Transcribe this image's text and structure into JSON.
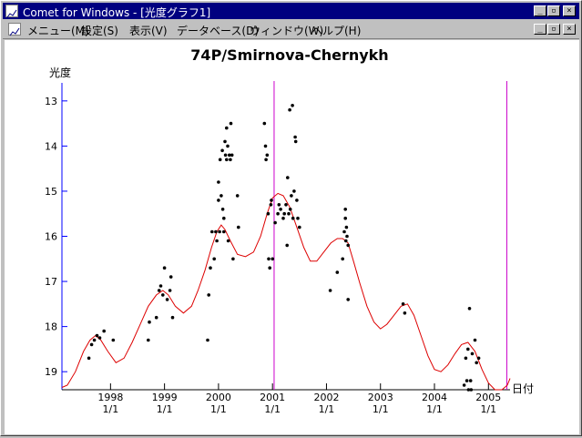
{
  "window": {
    "title": "Comet for Windows - [光度グラフ1]",
    "controls": {
      "minimize": "_",
      "restore": "▫",
      "close": "×"
    }
  },
  "menu": {
    "items": [
      "メニュー(M)",
      "設定(S)",
      "表示(V)",
      "データベース(D)",
      "ウィンドウ(W)",
      "ヘルプ(H)"
    ]
  },
  "chart_data": {
    "type": "scatter",
    "title": "74P/Smirnova-Chernykh",
    "ylabel": "光度",
    "xlabel": "日付",
    "y_inverted": true,
    "ylim": [
      19.4,
      12.6
    ],
    "xlim": [
      1997.1,
      2005.4
    ],
    "y_ticks": [
      13,
      14,
      15,
      16,
      17,
      18,
      19
    ],
    "x_ticks": [
      {
        "value": 1998.0,
        "year": "1998",
        "day": "1/1"
      },
      {
        "value": 1999.0,
        "year": "1999",
        "day": "1/1"
      },
      {
        "value": 2000.0,
        "year": "2000",
        "day": "1/1"
      },
      {
        "value": 2001.0,
        "year": "2001",
        "day": "1/1"
      },
      {
        "value": 2002.0,
        "year": "2002",
        "day": "1/1"
      },
      {
        "value": 2003.0,
        "year": "2003",
        "day": "1/1"
      },
      {
        "value": 2004.0,
        "year": "2004",
        "day": "1/1"
      },
      {
        "value": 2005.0,
        "year": "2005",
        "day": "1/1"
      }
    ],
    "vertical_markers": [
      2001.03,
      2005.34
    ],
    "colors": {
      "points": "#000000",
      "curve": "#dd0000",
      "markers": "#cc00cc",
      "axis": "#0000ff",
      "tick_labels": "#000000"
    },
    "observations": [
      [
        1997.6,
        18.7
      ],
      [
        1997.65,
        18.4
      ],
      [
        1997.7,
        18.3
      ],
      [
        1997.75,
        18.2
      ],
      [
        1997.8,
        18.25
      ],
      [
        1997.88,
        18.1
      ],
      [
        1998.05,
        18.3
      ],
      [
        1998.7,
        18.3
      ],
      [
        1998.72,
        17.9
      ],
      [
        1998.85,
        17.8
      ],
      [
        1998.9,
        17.2
      ],
      [
        1998.93,
        17.1
      ],
      [
        1998.97,
        17.3
      ],
      [
        1999.0,
        16.7
      ],
      [
        1999.05,
        17.4
      ],
      [
        1999.1,
        17.2
      ],
      [
        1999.12,
        16.9
      ],
      [
        1999.15,
        17.8
      ],
      [
        1999.8,
        18.3
      ],
      [
        1999.82,
        17.3
      ],
      [
        1999.85,
        16.7
      ],
      [
        1999.88,
        15.9
      ],
      [
        1999.92,
        16.5
      ],
      [
        1999.95,
        15.9
      ],
      [
        1999.97,
        16.1
      ],
      [
        2000.0,
        14.8
      ],
      [
        2000.0,
        15.2
      ],
      [
        2000.02,
        15.9
      ],
      [
        2000.03,
        14.3
      ],
      [
        2000.05,
        15.1
      ],
      [
        2000.07,
        14.1
      ],
      [
        2000.08,
        15.4
      ],
      [
        2000.1,
        15.6
      ],
      [
        2000.1,
        15.9
      ],
      [
        2000.12,
        13.9
      ],
      [
        2000.13,
        14.2
      ],
      [
        2000.15,
        13.6
      ],
      [
        2000.15,
        14.3
      ],
      [
        2000.17,
        14.0
      ],
      [
        2000.18,
        16.1
      ],
      [
        2000.2,
        14.2
      ],
      [
        2000.22,
        14.3
      ],
      [
        2000.23,
        13.5
      ],
      [
        2000.25,
        14.2
      ],
      [
        2000.27,
        16.5
      ],
      [
        2000.35,
        15.1
      ],
      [
        2000.37,
        15.8
      ],
      [
        2000.85,
        13.5
      ],
      [
        2000.87,
        14.0
      ],
      [
        2000.88,
        14.3
      ],
      [
        2000.9,
        14.2
      ],
      [
        2000.92,
        15.5
      ],
      [
        2000.93,
        16.5
      ],
      [
        2000.95,
        16.7
      ],
      [
        2000.97,
        15.3
      ],
      [
        2000.98,
        15.2
      ],
      [
        2001.0,
        16.5
      ],
      [
        2001.05,
        15.7
      ],
      [
        2001.1,
        15.5
      ],
      [
        2001.12,
        15.3
      ],
      [
        2001.15,
        15.4
      ],
      [
        2001.2,
        15.6
      ],
      [
        2001.22,
        15.5
      ],
      [
        2001.25,
        15.3
      ],
      [
        2001.27,
        16.2
      ],
      [
        2001.28,
        14.7
      ],
      [
        2001.3,
        15.5
      ],
      [
        2001.32,
        13.2
      ],
      [
        2001.33,
        15.4
      ],
      [
        2001.35,
        15.1
      ],
      [
        2001.37,
        13.1
      ],
      [
        2001.38,
        15.6
      ],
      [
        2001.4,
        15.0
      ],
      [
        2001.42,
        13.8
      ],
      [
        2001.43,
        13.9
      ],
      [
        2001.45,
        15.2
      ],
      [
        2001.47,
        15.6
      ],
      [
        2001.5,
        15.8
      ],
      [
        2002.07,
        17.2
      ],
      [
        2002.2,
        16.8
      ],
      [
        2002.3,
        16.5
      ],
      [
        2002.33,
        15.9
      ],
      [
        2002.35,
        15.4
      ],
      [
        2002.35,
        15.6
      ],
      [
        2002.36,
        16.1
      ],
      [
        2002.37,
        15.8
      ],
      [
        2002.38,
        16.0
      ],
      [
        2002.4,
        16.2
      ],
      [
        2002.4,
        17.4
      ],
      [
        2003.42,
        17.5
      ],
      [
        2003.45,
        17.7
      ],
      [
        2004.55,
        19.3
      ],
      [
        2004.58,
        18.7
      ],
      [
        2004.6,
        19.2
      ],
      [
        2004.62,
        18.5
      ],
      [
        2004.63,
        19.4
      ],
      [
        2004.65,
        17.6
      ],
      [
        2004.67,
        19.2
      ],
      [
        2004.68,
        19.4
      ],
      [
        2004.7,
        18.6
      ],
      [
        2004.75,
        18.3
      ],
      [
        2004.78,
        18.8
      ],
      [
        2004.82,
        18.7
      ]
    ],
    "fit_curve": [
      [
        1997.1,
        19.35
      ],
      [
        1997.2,
        19.3
      ],
      [
        1997.35,
        19.0
      ],
      [
        1997.5,
        18.55
      ],
      [
        1997.62,
        18.3
      ],
      [
        1997.72,
        18.2
      ],
      [
        1997.82,
        18.3
      ],
      [
        1997.95,
        18.55
      ],
      [
        1998.1,
        18.8
      ],
      [
        1998.25,
        18.7
      ],
      [
        1998.4,
        18.35
      ],
      [
        1998.55,
        17.95
      ],
      [
        1998.7,
        17.55
      ],
      [
        1998.85,
        17.3
      ],
      [
        1998.97,
        17.2
      ],
      [
        1999.07,
        17.3
      ],
      [
        1999.2,
        17.55
      ],
      [
        1999.35,
        17.7
      ],
      [
        1999.5,
        17.55
      ],
      [
        1999.62,
        17.2
      ],
      [
        1999.75,
        16.75
      ],
      [
        1999.87,
        16.25
      ],
      [
        1999.97,
        15.9
      ],
      [
        2000.05,
        15.75
      ],
      [
        2000.12,
        15.85
      ],
      [
        2000.22,
        16.1
      ],
      [
        2000.35,
        16.4
      ],
      [
        2000.5,
        16.45
      ],
      [
        2000.65,
        16.35
      ],
      [
        2000.78,
        16.0
      ],
      [
        2000.9,
        15.5
      ],
      [
        2001.0,
        15.15
      ],
      [
        2001.1,
        15.05
      ],
      [
        2001.2,
        15.1
      ],
      [
        2001.32,
        15.35
      ],
      [
        2001.45,
        15.8
      ],
      [
        2001.58,
        16.25
      ],
      [
        2001.7,
        16.55
      ],
      [
        2001.82,
        16.55
      ],
      [
        2001.95,
        16.35
      ],
      [
        2002.08,
        16.15
      ],
      [
        2002.2,
        16.05
      ],
      [
        2002.3,
        16.05
      ],
      [
        2002.4,
        16.15
      ],
      [
        2002.5,
        16.55
      ],
      [
        2002.62,
        17.05
      ],
      [
        2002.75,
        17.55
      ],
      [
        2002.88,
        17.9
      ],
      [
        2003.0,
        18.05
      ],
      [
        2003.12,
        17.95
      ],
      [
        2003.25,
        17.75
      ],
      [
        2003.38,
        17.55
      ],
      [
        2003.5,
        17.5
      ],
      [
        2003.62,
        17.75
      ],
      [
        2003.75,
        18.2
      ],
      [
        2003.88,
        18.65
      ],
      [
        2004.0,
        18.95
      ],
      [
        2004.12,
        19.0
      ],
      [
        2004.25,
        18.85
      ],
      [
        2004.38,
        18.6
      ],
      [
        2004.5,
        18.4
      ],
      [
        2004.62,
        18.35
      ],
      [
        2004.75,
        18.55
      ],
      [
        2004.88,
        18.95
      ],
      [
        2005.0,
        19.25
      ],
      [
        2005.12,
        19.4
      ],
      [
        2005.25,
        19.4
      ],
      [
        2005.35,
        19.3
      ],
      [
        2005.4,
        19.15
      ]
    ]
  }
}
